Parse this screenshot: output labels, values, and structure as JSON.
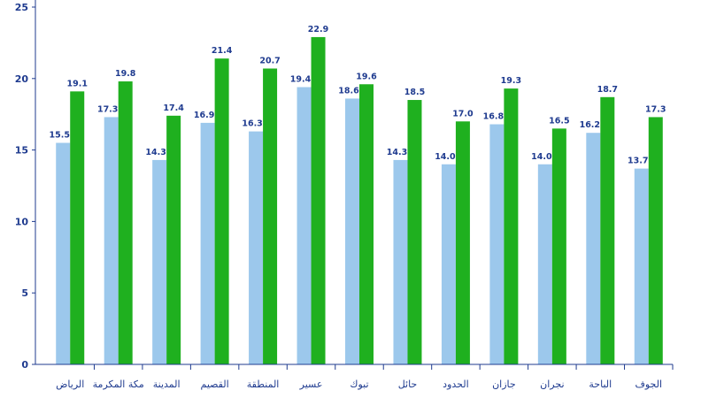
{
  "chart_data": {
    "type": "bar",
    "categories": [
      "الرياض",
      "مكة المكرمة",
      "المدينة",
      "القصيم",
      "المنطقة",
      "عسير",
      "تبوك",
      "حائل",
      "الحدود",
      "جازان",
      "نجران",
      "الباحة",
      "الجوف"
    ],
    "series": [
      {
        "values": [
          15.5,
          17.3,
          14.3,
          16.9,
          16.3,
          19.4,
          18.6,
          14.3,
          14.0,
          16.8,
          14.0,
          16.2,
          13.7
        ]
      },
      {
        "values": [
          19.1,
          19.8,
          17.4,
          21.4,
          20.7,
          22.9,
          19.6,
          18.5,
          17.0,
          19.3,
          16.5,
          18.7,
          17.3
        ]
      }
    ],
    "labels": [
      [
        "15.5",
        "17.3",
        "14.3",
        "16.9",
        "16.3",
        "19.4",
        "18.6",
        "14.3",
        "14.0",
        "16.8",
        "14.0",
        "16.2",
        "13.7"
      ],
      [
        "19.1",
        "19.8",
        "17.4",
        "21.4",
        "20.7",
        "22.9",
        "19.6",
        "18.5",
        "17.0",
        "19.3",
        "16.5",
        "18.7",
        "17.3"
      ]
    ],
    "yticks": [
      "0",
      "5",
      "10",
      "15",
      "20",
      "25"
    ],
    "ylim": [
      0,
      25
    ],
    "colors": [
      "#9cc8ec",
      "#1fb01f"
    ],
    "axis_color": "#1f3b8f",
    "grid": false
  }
}
